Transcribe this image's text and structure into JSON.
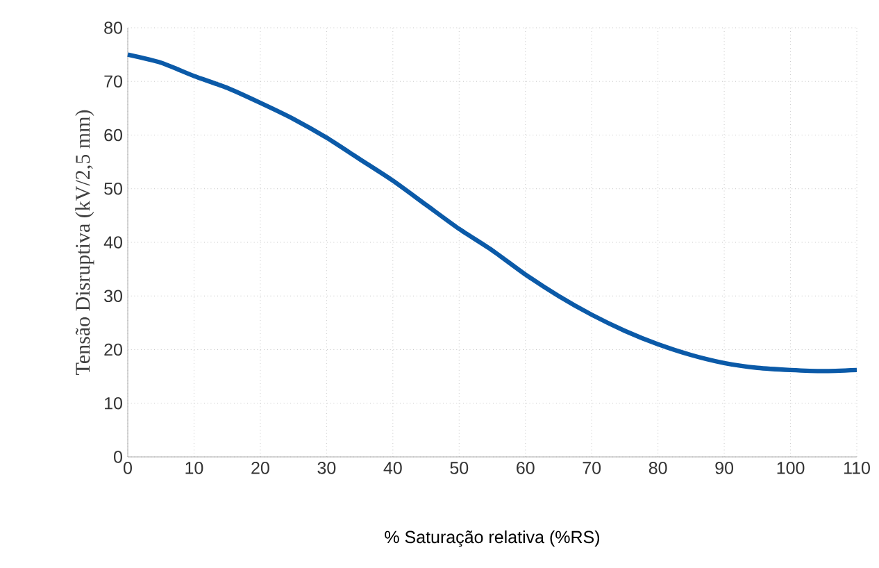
{
  "chart_data": {
    "type": "line",
    "xlabel": "% Saturação relativa (%RS)",
    "ylabel": "Tensão Disruptiva (kV/2,5 mm)",
    "x": [
      0,
      5,
      10,
      15,
      20,
      25,
      30,
      35,
      40,
      45,
      50,
      55,
      60,
      65,
      70,
      75,
      80,
      85,
      90,
      95,
      100,
      105,
      110
    ],
    "series": [
      {
        "color": "#0b5aa8",
        "values": [
          75,
          73.5,
          71,
          68.8,
          66,
          63,
          59.5,
          55.5,
          51.5,
          47,
          42.5,
          38.5,
          34,
          30,
          26.5,
          23.5,
          21,
          19,
          17.5,
          16.6,
          16.2,
          16,
          16.2
        ]
      }
    ],
    "xlim": [
      0,
      110
    ],
    "xticks": [
      0,
      10,
      20,
      30,
      40,
      50,
      60,
      70,
      80,
      90,
      100,
      110
    ],
    "ylim": [
      0,
      80
    ],
    "yticks": [
      0,
      10,
      20,
      30,
      40,
      50,
      60,
      70,
      80
    ],
    "grid": true,
    "marker": "none",
    "line_style": "solid"
  }
}
